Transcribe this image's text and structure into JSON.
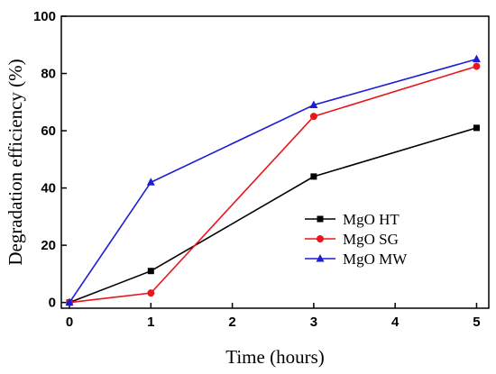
{
  "chart_data": {
    "type": "line",
    "xlabel": "Time (hours)",
    "ylabel": "Degradation efficiency (%)",
    "xlim": [
      -0.1,
      5.15
    ],
    "ylim": [
      -2,
      100
    ],
    "xticks": [
      0,
      1,
      2,
      3,
      4,
      5
    ],
    "yticks": [
      0,
      20,
      40,
      60,
      80,
      100
    ],
    "grid": false,
    "legend_position": "right-center",
    "x": [
      0,
      1,
      3,
      5
    ],
    "series": [
      {
        "name": "MgO HT",
        "values": [
          0,
          11,
          44,
          61
        ],
        "color": "#000000",
        "marker": "square"
      },
      {
        "name": "MgO SG",
        "values": [
          0,
          3.3,
          65,
          82.5
        ],
        "color": "#e8161b",
        "marker": "circle"
      },
      {
        "name": "MgO MW",
        "values": [
          0,
          42,
          69,
          85
        ],
        "color": "#1d1dd6",
        "marker": "triangle"
      }
    ]
  }
}
